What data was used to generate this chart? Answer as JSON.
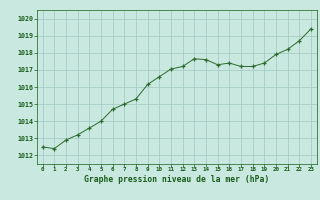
{
  "x": [
    0,
    1,
    2,
    3,
    4,
    5,
    6,
    7,
    8,
    9,
    10,
    11,
    12,
    13,
    14,
    15,
    16,
    17,
    18,
    19,
    20,
    21,
    22,
    23
  ],
  "y": [
    1012.5,
    1012.4,
    1012.9,
    1013.2,
    1013.6,
    1014.0,
    1014.7,
    1015.0,
    1015.3,
    1016.15,
    1016.6,
    1017.05,
    1017.2,
    1017.65,
    1017.6,
    1017.3,
    1017.4,
    1017.2,
    1017.2,
    1017.4,
    1017.9,
    1018.2,
    1018.7,
    1019.4
  ],
  "xlim": [
    -0.5,
    23.5
  ],
  "ylim": [
    1011.5,
    1020.5
  ],
  "yticks": [
    1012,
    1013,
    1014,
    1015,
    1016,
    1017,
    1018,
    1019,
    1020
  ],
  "xticks": [
    0,
    1,
    2,
    3,
    4,
    5,
    6,
    7,
    8,
    9,
    10,
    11,
    12,
    13,
    14,
    15,
    16,
    17,
    18,
    19,
    20,
    21,
    22,
    23
  ],
  "line_color": "#2d6a2d",
  "marker_color": "#2d6a2d",
  "bg_color": "#c8e8e0",
  "grid_color": "#a0c8c0",
  "xlabel": "Graphe pression niveau de la mer (hPa)",
  "xlabel_color": "#1a5c1a",
  "tick_color": "#1a5c1a"
}
